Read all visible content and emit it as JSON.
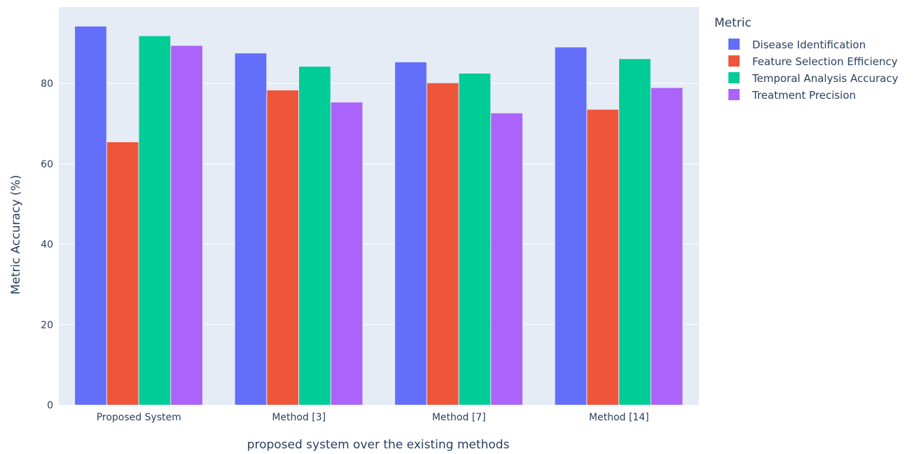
{
  "chart_data": {
    "type": "bar",
    "categories": [
      "Proposed System",
      "Method [3]",
      "Method [7]",
      "Method [14]"
    ],
    "series": [
      {
        "name": "Disease Identification",
        "color": "#636efa",
        "values": [
          94.2,
          87.5,
          85.3,
          89.0
        ]
      },
      {
        "name": "Feature Selection Efficiency",
        "color": "#ef553b",
        "values": [
          65.4,
          78.3,
          80.1,
          73.5
        ]
      },
      {
        "name": "Temporal Analysis Accuracy",
        "color": "#00cc96",
        "values": [
          91.8,
          84.2,
          82.5,
          86.1
        ]
      },
      {
        "name": "Treatment Precision",
        "color": "#ab63fa",
        "values": [
          89.4,
          75.3,
          72.6,
          78.9
        ]
      }
    ],
    "xlabel": "proposed system over the existing methods",
    "ylabel": "Metric Accuracy (%)",
    "ylim": [
      0,
      99
    ],
    "yticks": [
      0,
      20,
      40,
      60,
      80
    ],
    "legend_title": "Metric",
    "legend_placement": "top-right outside plot",
    "grid": true,
    "plot_background": "#e5ecf6"
  }
}
